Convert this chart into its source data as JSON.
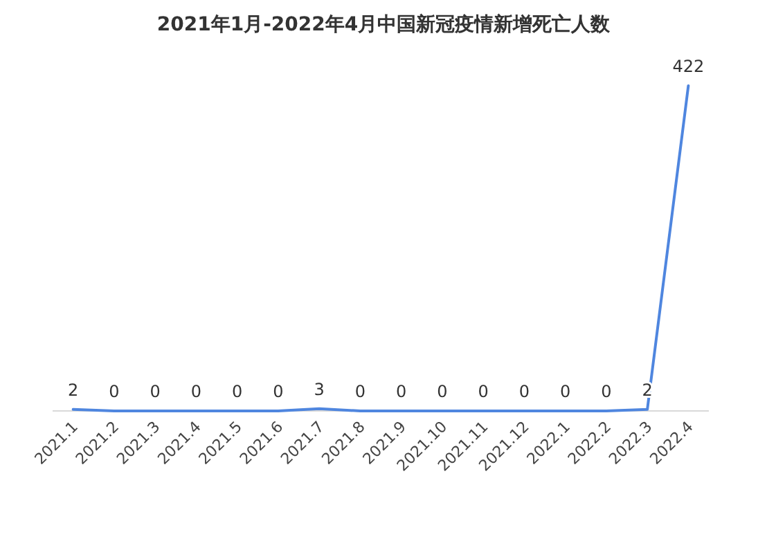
{
  "chart_data": {
    "type": "line",
    "title": "2021年1月-2022年4月中国新冠疫情新增死亡人数",
    "categories": [
      "2021.1",
      "2021.2",
      "2021.3",
      "2021.4",
      "2021.5",
      "2021.6",
      "2021.7",
      "2021.8",
      "2021.9",
      "2021.10",
      "2021.11",
      "2021.12",
      "2022.1",
      "2022.2",
      "2022.3",
      "2022.4"
    ],
    "series": [
      {
        "color": "#4f86df",
        "values": [
          2,
          0,
          0,
          0,
          0,
          0,
          3,
          0,
          0,
          0,
          0,
          0,
          0,
          0,
          2,
          422
        ]
      }
    ],
    "data_labels": true
  }
}
